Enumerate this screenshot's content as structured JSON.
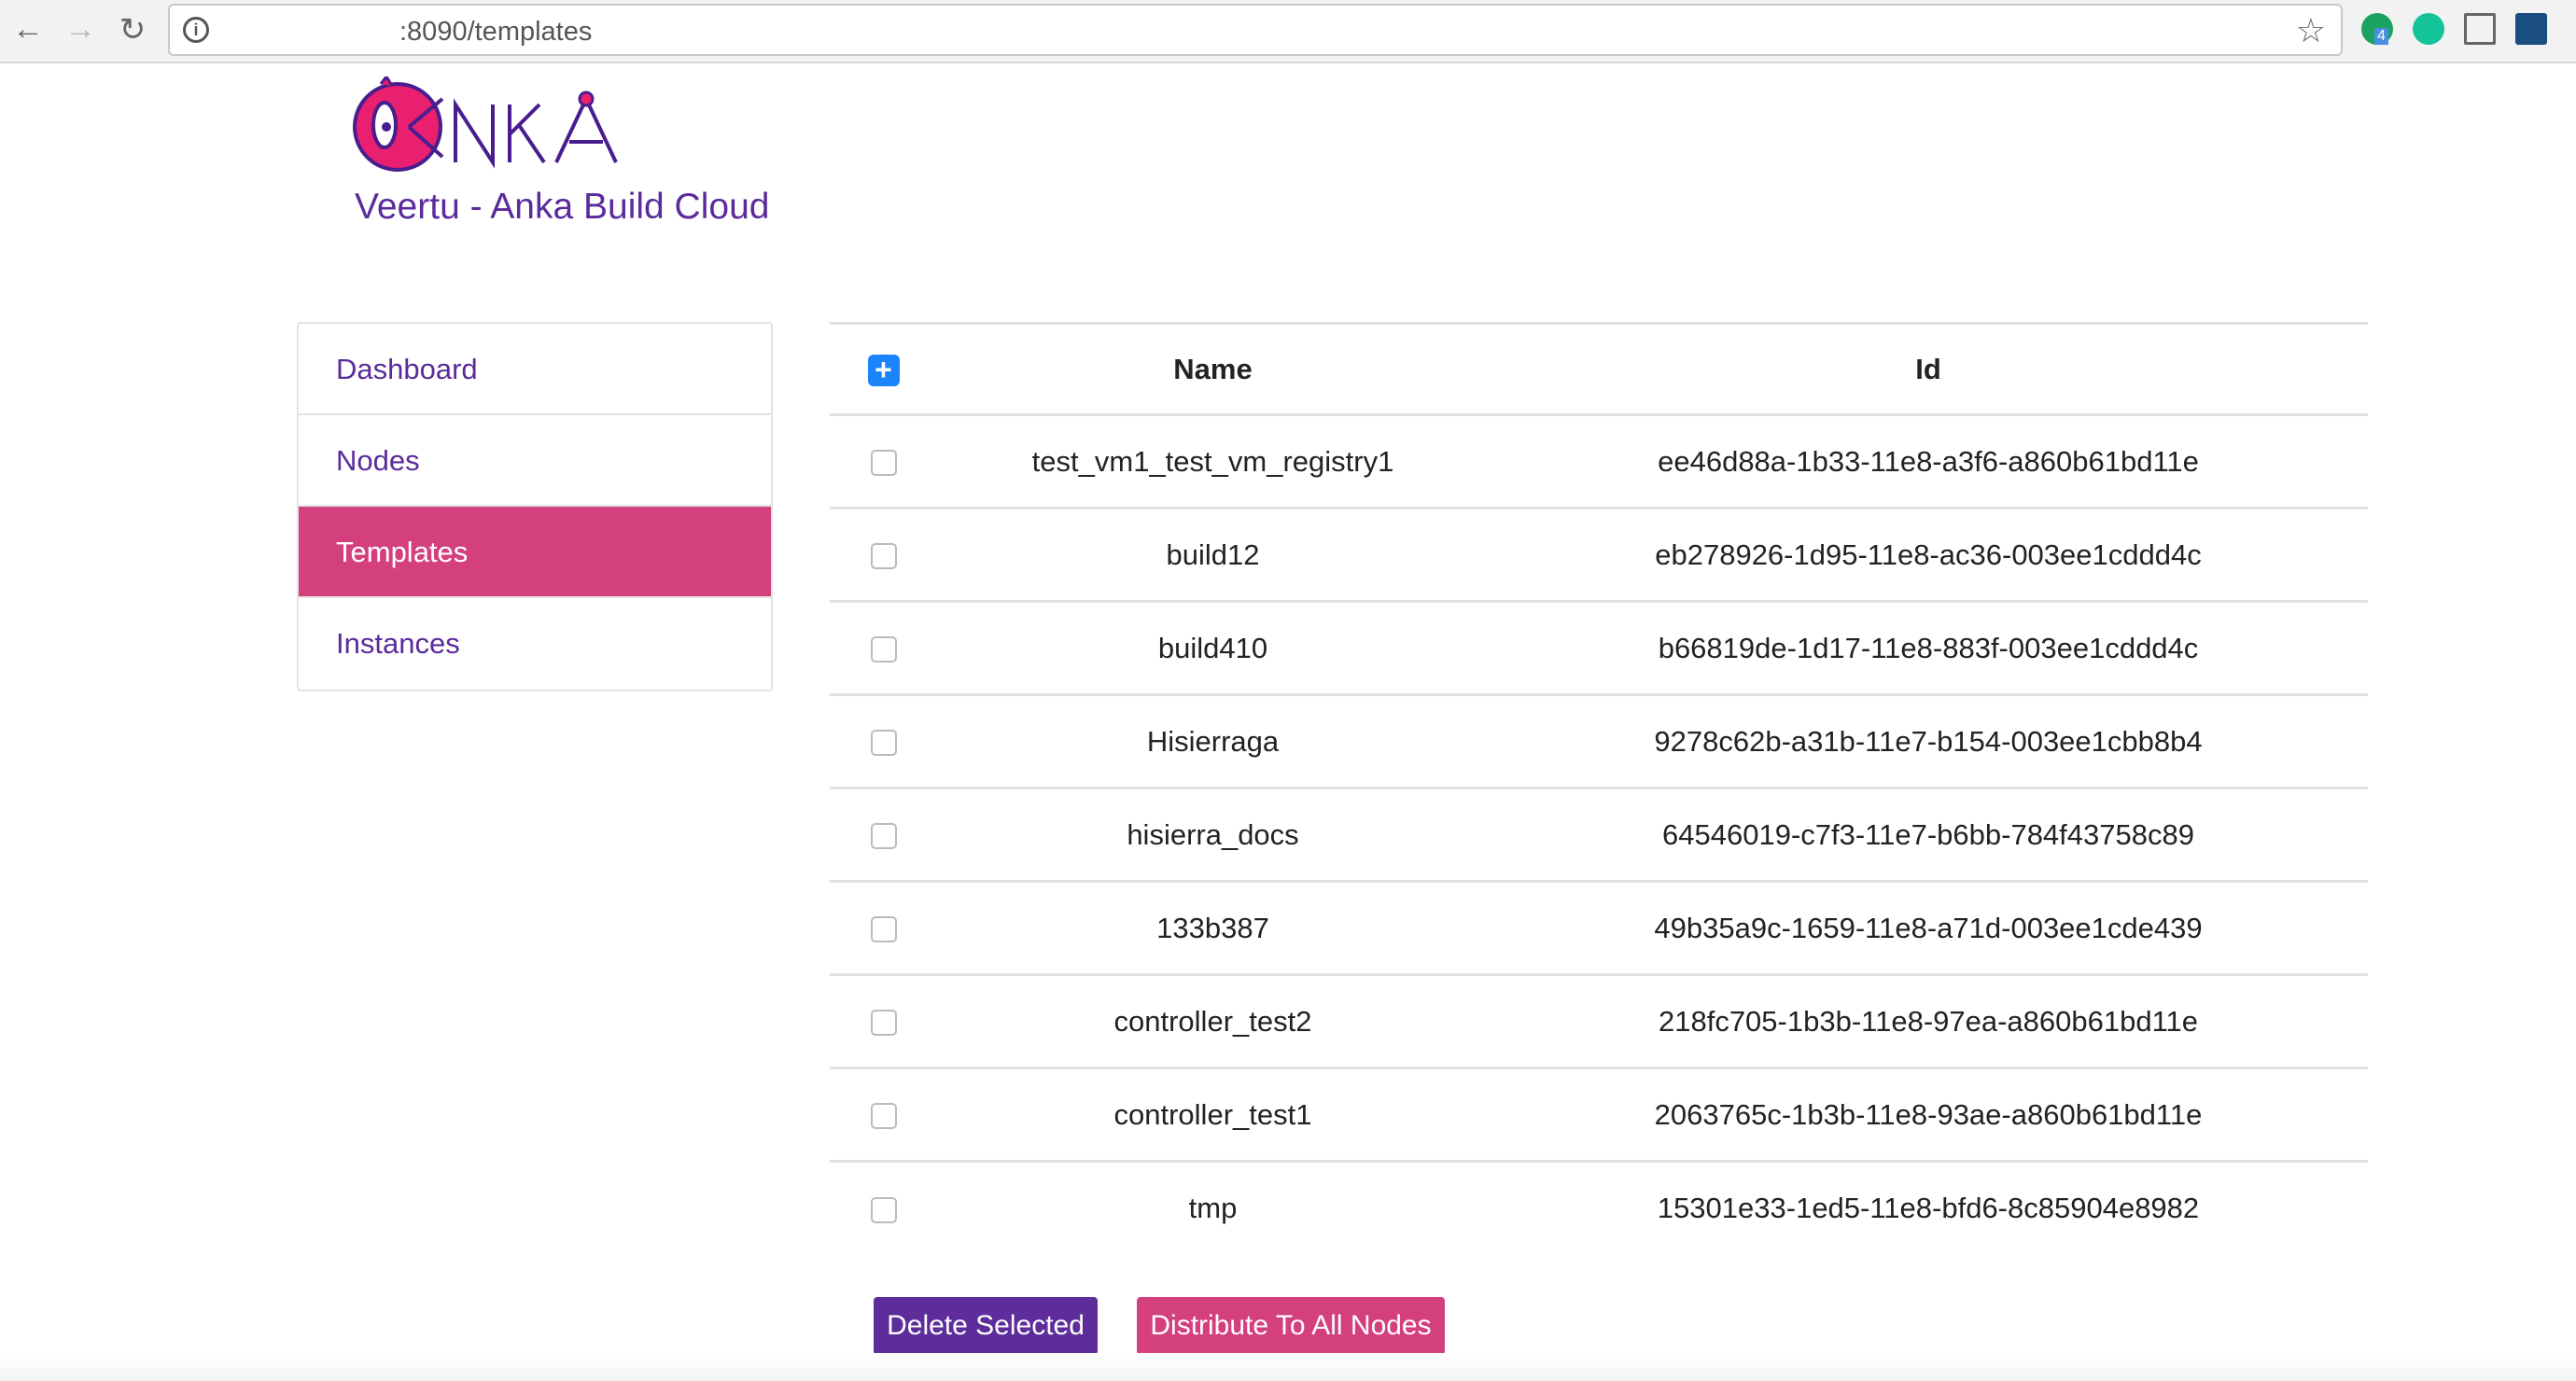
{
  "browser": {
    "url": ":8090/templates",
    "back_icon": "arrow-left",
    "forward_icon": "arrow-right",
    "reload_icon": "reload",
    "info_icon": "info",
    "bookmark_icon": "star",
    "extension_badge": "4"
  },
  "brand": {
    "logo_text": "ANKA",
    "subtitle": "Veertu - Anka Build Cloud",
    "colors": {
      "purple": "#5b2a9c",
      "pink": "#d43f7e",
      "blue": "#1b84fa"
    }
  },
  "sidebar": {
    "items": [
      {
        "label": "Dashboard"
      },
      {
        "label": "Nodes"
      },
      {
        "label": "Templates",
        "active": true
      },
      {
        "label": "Instances"
      }
    ]
  },
  "table": {
    "columns": [
      "Name",
      "Id"
    ],
    "rows": [
      {
        "name": "test_vm1_test_vm_registry1",
        "id": "ee46d88a-1b33-11e8-a3f6-a860b61bd11e",
        "checked": false
      },
      {
        "name": "build12",
        "id": "eb278926-1d95-11e8-ac36-003ee1cddd4c",
        "checked": false
      },
      {
        "name": "build410",
        "id": "b66819de-1d17-11e8-883f-003ee1cddd4c",
        "checked": false
      },
      {
        "name": "Hisierraga",
        "id": "9278c62b-a31b-11e7-b154-003ee1cbb8b4",
        "checked": false
      },
      {
        "name": "hisierra_docs",
        "id": "64546019-c7f3-11e7-b6bb-784f43758c89",
        "checked": false
      },
      {
        "name": "133b387",
        "id": "49b35a9c-1659-11e8-a71d-003ee1cde439",
        "checked": false
      },
      {
        "name": "controller_test2",
        "id": "218fc705-1b3b-11e8-97ea-a860b61bd11e",
        "checked": false
      },
      {
        "name": "controller_test1",
        "id": "2063765c-1b3b-11e8-93ae-a860b61bd11e",
        "checked": false
      },
      {
        "name": "tmp",
        "id": "15301e33-1ed5-11e8-bfd6-8c85904e8982",
        "checked": false
      }
    ]
  },
  "actions": {
    "delete_label": "Delete Selected",
    "distribute_label": "Distribute To All Nodes"
  }
}
